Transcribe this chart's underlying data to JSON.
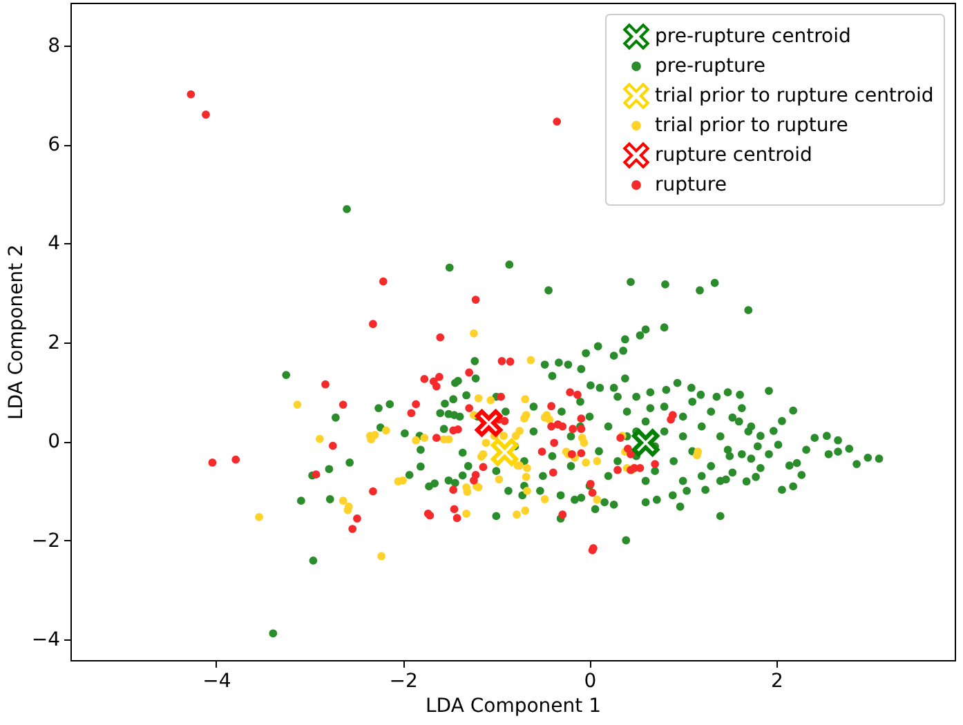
{
  "chart_data": {
    "type": "scatter",
    "xlabel": "LDA Component 1",
    "ylabel": "LDA Component 2",
    "xlim": [
      -5.56,
      3.91
    ],
    "ylim": [
      -4.42,
      8.86
    ],
    "xticks": [
      -4,
      -2,
      0,
      2
    ],
    "yticks": [
      -4,
      -2,
      0,
      2,
      4,
      6,
      8
    ],
    "legend": "top right",
    "series": [
      {
        "name": "pre-rupture centroid",
        "color": "#008000",
        "marker": "cross",
        "x": [
          0.6
        ],
        "values": [
          -0.03
        ]
      },
      {
        "name": "pre-rupture",
        "color": "#2b8c2b",
        "marker": "circle",
        "x": [
          -2.6,
          -1.5,
          -0.86,
          -0.44,
          0.44,
          0.81,
          1.18,
          1.34,
          1.7,
          0.8,
          0.6,
          0.54,
          0.38,
          -3.25,
          -2.96,
          -3.39,
          -2.72,
          -2.79,
          -2.57,
          -2.97,
          -3.09,
          -2.78,
          -2.26,
          -2.14,
          -2.24,
          -1.98,
          -1.82,
          -1.81,
          -1.81,
          -1.93,
          -1.72,
          -1.66,
          -1.51,
          -1.44,
          -1.36,
          -1.6,
          -1.51,
          -1.45,
          -1.39,
          -1.55,
          -1.46,
          -1.32,
          -1.44,
          -1.41,
          -1.23,
          -1.22,
          -1.56,
          -1.36,
          -1.0,
          -0.31,
          0.39,
          1.4,
          2.06,
          2.18,
          2.27,
          1.92,
          2.18,
          2.06,
          1.97,
          2.41,
          2.54,
          2.66,
          2.78,
          2.86,
          2.98,
          3.1,
          2.56,
          2.66,
          2.32,
          2.22,
          2.14,
          1.83,
          1.78,
          1.68,
          1.48,
          1.61,
          1.36,
          1.63,
          1.53,
          1.73,
          1.83,
          1.48,
          1.63,
          1.73,
          1.92,
          2.02,
          1.53,
          1.46,
          1.24,
          1.04,
          0.89,
          0.97,
          0.72,
          0.6,
          0.26,
          0.16,
          0.06,
          -0.16,
          -0.09,
          -0.31,
          -0.53,
          -0.72,
          -0.87,
          0.38,
          0.26,
          0.11,
          0.01,
          -0.09,
          -0.04,
          0.09,
          0.26,
          0.36,
          -0.33,
          -0.23,
          -0.48,
          -0.4,
          0.94,
          1.09,
          1.19,
          0.82,
          0.65,
          0.5,
          0.65,
          0.0,
          0.2,
          0.4,
          0.6,
          0.8,
          1.0,
          1.2,
          1.4,
          1.6,
          0.1,
          0.3,
          0.5,
          0.7,
          0.9,
          1.1,
          1.3,
          1.5,
          0.2,
          0.6,
          1.0,
          1.2,
          -0.2,
          -0.4,
          -0.6,
          -0.8,
          -0.3,
          -0.5,
          0.8,
          1.1,
          1.3,
          1.7,
          1.8,
          0.0,
          0.4,
          0.7,
          1.0,
          1.4,
          0.3,
          -0.1,
          -1.2,
          -1.0,
          -0.9,
          -1.3,
          -1.0,
          -0.7,
          -0.6,
          -0.7,
          -0.2,
          -0.1,
          0.5
        ],
        "values": [
          4.69,
          3.51,
          3.57,
          3.05,
          3.22,
          3.17,
          3.05,
          3.2,
          2.65,
          2.3,
          2.26,
          2.14,
          2.06,
          1.34,
          -2.41,
          -3.88,
          0.48,
          -0.56,
          -0.43,
          -0.69,
          -1.2,
          -1.17,
          0.67,
          0.75,
          0.28,
          0.16,
          0.11,
          -0.17,
          -0.51,
          -0.68,
          -0.91,
          -0.85,
          -0.79,
          -0.84,
          -0.69,
          0.57,
          0.55,
          0.53,
          0.5,
          0.76,
          0.85,
          0.93,
          1.18,
          1.22,
          1.62,
          1.27,
          0.25,
          -0.23,
          -1.51,
          -1.56,
          -2.0,
          -1.51,
          -0.98,
          -0.91,
          -0.68,
          1.02,
          0.62,
          0.41,
          0.21,
          0.07,
          0.11,
          0.02,
          -0.15,
          -0.46,
          -0.33,
          -0.35,
          -0.26,
          -0.21,
          -0.17,
          -0.44,
          -0.49,
          -0.54,
          -0.72,
          -0.81,
          0.99,
          0.94,
          0.9,
          0.67,
          0.48,
          0.3,
          0.11,
          -0.17,
          -0.26,
          -0.35,
          -0.26,
          -0.07,
          -0.63,
          -0.77,
          -0.98,
          -1.0,
          -1.09,
          -1.32,
          -1.18,
          -1.23,
          -1.28,
          -1.23,
          -1.37,
          -1.18,
          -1.14,
          -1.09,
          -1.0,
          -1.09,
          -1.0,
          1.27,
          1.08,
          1.08,
          1.13,
          1.46,
          1.78,
          1.92,
          1.73,
          1.83,
          1.59,
          1.55,
          1.55,
          1.32,
          1.18,
          1.08,
          0.94,
          1.04,
          0.99,
          0.9,
          0.67,
          0.5,
          0.3,
          0.6,
          0.4,
          0.2,
          0.5,
          0.3,
          0.1,
          0.4,
          -0.2,
          -0.4,
          -0.3,
          -0.6,
          -0.4,
          -0.2,
          -0.5,
          -0.3,
          -0.7,
          -0.8,
          -0.8,
          -0.7,
          0.1,
          -0.3,
          0.2,
          -0.1,
          0.6,
          -0.7,
          0.7,
          0.8,
          0.6,
          0.2,
          -0.1,
          -0.9,
          0.1,
          -0.1,
          0.1,
          -0.8,
          0.9,
          0.8,
          0.5,
          0.9,
          0.6,
          -0.5,
          -0.6,
          -0.9,
          0.7,
          -0.4,
          -0.5,
          0.3,
          0.2
        ]
      },
      {
        "name": "trial prior to rupture centroid",
        "color": "#ffd700",
        "marker": "cross",
        "x": [
          -0.91
        ],
        "values": [
          -0.22
        ]
      },
      {
        "name": "trial prior to rupture",
        "color": "#ffd22a",
        "marker": "circle",
        "x": [
          -3.13,
          -2.89,
          -2.35,
          -2.34,
          -2.3,
          -2.18,
          -2.64,
          -2.59,
          -3.54,
          -2.23,
          -2.05,
          -2.0,
          -1.86,
          -1.77,
          -1.56,
          -1.51,
          -1.32,
          -1.31,
          -1.32,
          -1.19,
          -1.24,
          -1.19,
          -1.24,
          -0.63,
          -1.06,
          -0.69,
          -0.79,
          -0.75,
          -0.7,
          -0.68,
          -0.46,
          -0.08,
          -0.25,
          -0.16,
          -0.04,
          0.08,
          0.35,
          0.4,
          0.47,
          -1.14,
          -0.97,
          -0.75,
          -0.68,
          -0.78,
          -0.69,
          -2.58,
          0.08,
          -0.48,
          -0.67,
          -0.77,
          1.16,
          1.15,
          0.38,
          0.45,
          -0.23,
          -1.11,
          -1.16,
          -1.21,
          -1.02,
          -1.04,
          -0.92,
          -0.67,
          -0.06,
          -0.43,
          -0.48
        ],
        "values": [
          0.74,
          0.05,
          0.11,
          0.04,
          0.13,
          0.22,
          -1.2,
          -1.39,
          -1.53,
          -2.32,
          -0.81,
          -0.79,
          0.02,
          0.07,
          0.04,
          0.04,
          -0.93,
          -1.02,
          -1.46,
          -0.93,
          0.53,
          0.87,
          2.18,
          1.64,
          0.83,
          0.85,
          0.11,
          0.21,
          0.46,
          0.53,
          0.53,
          0.07,
          -0.21,
          -0.33,
          -0.43,
          -0.4,
          0.11,
          -0.54,
          -0.54,
          -0.26,
          -0.77,
          -0.49,
          -0.72,
          -1.48,
          -1.4,
          -1.32,
          -1.18,
          -1.17,
          -0.54,
          -0.49,
          -0.21,
          -0.28,
          -0.21,
          -0.58,
          -0.26,
          -0.03,
          -0.31,
          -0.91,
          0.11,
          0.25,
          0.11,
          -1.0,
          -0.03,
          0.44,
          0.48
        ]
      },
      {
        "name": "rupture centroid",
        "color": "#ff0000",
        "marker": "cross",
        "x": [
          -1.08
        ],
        "values": [
          0.37
        ]
      },
      {
        "name": "rupture",
        "color": "#f52a2a",
        "marker": "circle",
        "x": [
          -4.27,
          -4.11,
          -0.35,
          -2.21,
          -2.32,
          -1.22,
          -1.6,
          -2.83,
          -2.64,
          -2.75,
          -4.04,
          -3.79,
          -2.93,
          -2.32,
          -2.49,
          -2.54,
          -1.91,
          -1.86,
          -1.77,
          -1.67,
          -1.61,
          -1.64,
          -1.29,
          -1.64,
          -1.46,
          -1.41,
          -1.29,
          -1.46,
          -1.45,
          -1.42,
          -1.73,
          -1.71,
          -1.24,
          -1.22,
          -0.94,
          -0.85,
          -0.95,
          -0.91,
          -0.41,
          -0.13,
          -0.21,
          -0.34,
          -0.41,
          -0.29,
          -0.09,
          -0.51,
          -0.19,
          -0.09,
          -0.39,
          0.33,
          0.41,
          0.44,
          0.3,
          0.44,
          0.01,
          0.03,
          -1.14,
          -0.29,
          -0.18,
          -0.09,
          -0.38,
          0.04,
          0.03,
          0.48,
          0.54,
          0.7,
          0.89,
          0.87,
          -0.97
        ],
        "values": [
          7.01,
          6.6,
          6.46,
          3.23,
          2.37,
          2.86,
          2.1,
          1.15,
          0.74,
          -0.09,
          -0.43,
          -0.37,
          -0.67,
          -1.01,
          -1.56,
          -1.77,
          0.57,
          0.75,
          1.26,
          1.21,
          1.3,
          1.11,
          1.39,
          0.07,
          0.22,
          0.24,
          0.67,
          -0.98,
          -1.37,
          -1.55,
          -1.46,
          -1.5,
          -0.79,
          -0.68,
          1.62,
          1.61,
          0.9,
          0.41,
          0.71,
          0.94,
          0.99,
          0.34,
          0.3,
          0.3,
          0.25,
          -0.21,
          -0.26,
          -0.24,
          -0.63,
          0.07,
          -0.15,
          -0.26,
          -0.58,
          -0.58,
          -0.86,
          -1.04,
          -0.52,
          -1.48,
          0.25,
          0.46,
          -0.03,
          -2.16,
          -2.2,
          -0.54,
          -0.54,
          -0.46,
          0.53,
          0.44,
          0.44
        ]
      }
    ]
  }
}
